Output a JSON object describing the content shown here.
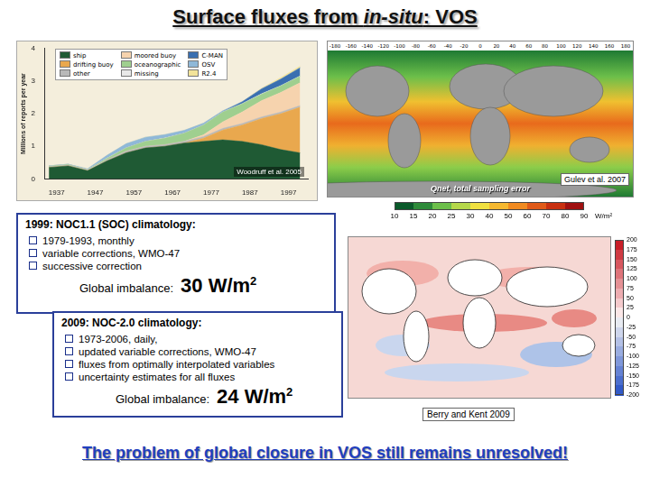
{
  "slide": {
    "title": {
      "before": "Surface fluxes from ",
      "italic": "in-situ",
      "after": ": VOS"
    },
    "footer": "The problem of global closure in VOS still remains unresolved!"
  },
  "chart_data": {
    "type": "area",
    "y_title": "Millions of reports per year",
    "annotation": "Woodruff et al. 2005",
    "x": [
      1935,
      1940,
      1945,
      1950,
      1955,
      1960,
      1965,
      1970,
      1975,
      1980,
      1985,
      1990,
      1995,
      2000
    ],
    "series": [
      {
        "name": "ship",
        "color": "#1f5a34",
        "values": [
          0.35,
          0.4,
          0.25,
          0.55,
          0.8,
          0.95,
          1.0,
          1.1,
          1.15,
          1.2,
          1.15,
          1.05,
          0.9,
          0.8
        ]
      },
      {
        "name": "drifting buoy",
        "color": "#e9a84e",
        "values": [
          0,
          0,
          0,
          0,
          0,
          0,
          0,
          0,
          0.1,
          0.3,
          0.5,
          0.8,
          1.1,
          1.4
        ]
      },
      {
        "name": "other",
        "color": "#b9b9b9",
        "values": [
          0.02,
          0.02,
          0.02,
          0.03,
          0.05,
          0.05,
          0.05,
          0.05,
          0.05,
          0.05,
          0.05,
          0.05,
          0.05,
          0.05
        ]
      },
      {
        "name": "moored buoy",
        "color": "#f6d3ae",
        "values": [
          0,
          0,
          0,
          0,
          0,
          0,
          0,
          0,
          0.05,
          0.2,
          0.35,
          0.5,
          0.6,
          0.7
        ]
      },
      {
        "name": "oceanographic",
        "color": "#9fcf8f",
        "values": [
          0.02,
          0.02,
          0.01,
          0.05,
          0.1,
          0.15,
          0.2,
          0.25,
          0.3,
          0.3,
          0.25,
          0.2,
          0.2,
          0.2
        ]
      },
      {
        "name": "missing",
        "color": "#e8e8e8",
        "values": [
          0.01,
          0.01,
          0.01,
          0.01,
          0.01,
          0.01,
          0.01,
          0.01,
          0.01,
          0.01,
          0.01,
          0.01,
          0.01,
          0.01
        ]
      },
      {
        "name": "C-MAN",
        "color": "#3a6fb0",
        "values": [
          0,
          0,
          0,
          0,
          0,
          0,
          0,
          0,
          0,
          0,
          0.05,
          0.15,
          0.2,
          0.25
        ]
      },
      {
        "name": "OSV",
        "color": "#8fb8d8",
        "values": [
          0,
          0,
          0.02,
          0.08,
          0.12,
          0.12,
          0.1,
          0.08,
          0.05,
          0.03,
          0.01,
          0,
          0,
          0
        ]
      },
      {
        "name": "R2.4",
        "color": "#f2e39a",
        "values": [
          0,
          0,
          0,
          0,
          0,
          0,
          0,
          0,
          0,
          0,
          0,
          0.02,
          0.05,
          0.05
        ]
      }
    ],
    "xlim": [
      1934,
      2002
    ],
    "xticks": [
      1937,
      1947,
      1957,
      1967,
      1977,
      1987,
      1997
    ],
    "ylim": [
      0,
      4
    ],
    "yticks": [
      0,
      1,
      2,
      3,
      4
    ],
    "stacked": true,
    "grid": false,
    "legend": "upper left"
  },
  "map_sampling_error": {
    "caption": "Qnet, total sampling error",
    "source": "Gulev et al. 2007",
    "lon_labels": [
      -180,
      -160,
      -140,
      -120,
      -100,
      -80,
      -60,
      -40,
      -20,
      0,
      20,
      40,
      60,
      80,
      100,
      120,
      140,
      160,
      180
    ],
    "colorbar": {
      "ticks": [
        10,
        15,
        20,
        25,
        30,
        40,
        50,
        60,
        70,
        80,
        90
      ],
      "unit": "W/m²"
    }
  },
  "map_noc2": {
    "source": "Berry and Kent 2009",
    "colorbar": {
      "ticks": [
        200,
        175,
        150,
        125,
        100,
        75,
        50,
        25,
        0,
        -25,
        -50,
        -75,
        -100,
        -125,
        -150,
        -175,
        -200
      ]
    }
  },
  "box1": {
    "heading": "1999: NOC1.1 (SOC) climatology:",
    "bullets": [
      "1979-1993, monthly",
      "variable corrections, WMO-47",
      "successive correction"
    ],
    "imbalance_label": "Global imbalance:",
    "imbalance_value": 30,
    "imbalance_unit": "W/m",
    "imbalance_unit_sup": "2"
  },
  "box2": {
    "heading": "2009: NOC-2.0 climatology:",
    "bullets": [
      "1973-2006, daily,",
      "updated variable corrections, WMO-47",
      "fluxes from optimally interpolated variables",
      "uncertainty estimates for all fluxes"
    ],
    "imbalance_label": "Global imbalance:",
    "imbalance_value": 24,
    "imbalance_unit": "W/m",
    "imbalance_unit_sup": "2"
  }
}
